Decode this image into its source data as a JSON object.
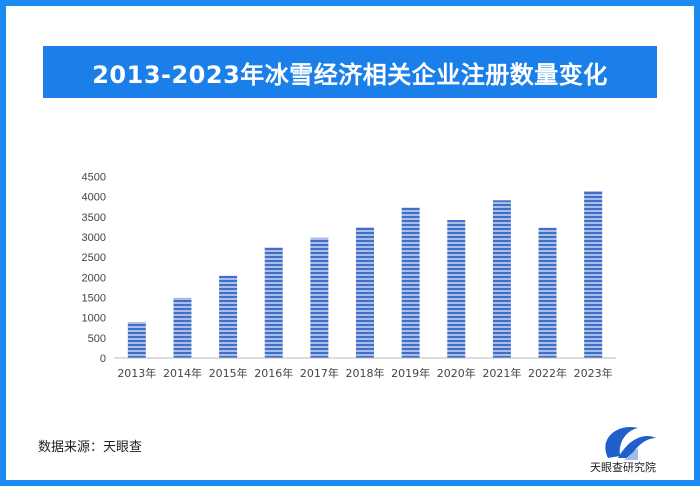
{
  "title": "2013-2023年冰雪经济相关企业注册数量变化",
  "source": "数据来源：天眼查",
  "logo_text": "天眼查研究院",
  "colors": {
    "frame": "#1a8cf0",
    "title_bg": "#1a7fe8",
    "bar": "#4a78c8"
  },
  "chart_data": {
    "type": "bar",
    "title": "",
    "xlabel": "",
    "ylabel": "",
    "categories": [
      "2013年",
      "2014年",
      "2015年",
      "2016年",
      "2017年",
      "2018年",
      "2019年",
      "2020年",
      "2021年",
      "2022年",
      "2023年"
    ],
    "values": [
      890,
      1490,
      2040,
      2740,
      2980,
      3240,
      3730,
      3420,
      3910,
      3230,
      4140
    ],
    "ylim": [
      0,
      4500
    ],
    "yticks": [
      "0",
      "500",
      "1000",
      "1500",
      "2000",
      "2500",
      "3000",
      "3500",
      "4000",
      "4500"
    ],
    "grid": false,
    "legend": "none"
  }
}
